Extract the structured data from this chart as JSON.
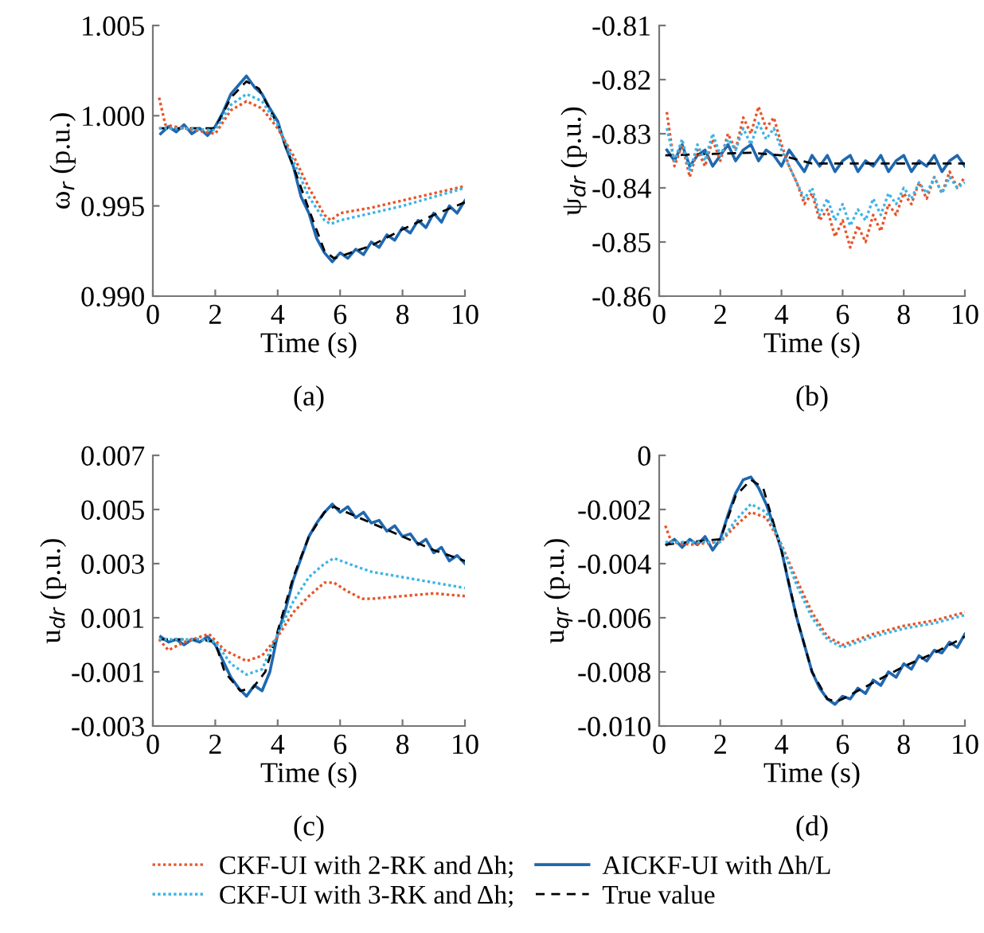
{
  "chart_data": [
    {
      "type": "line",
      "xlabel": "Time (s)",
      "ylabel": "ω$_{r}$ (p.u.)",
      "annotations": [
        "(a)"
      ],
      "legend": "bottom",
      "xlim": [
        0,
        10
      ],
      "xticks": [
        0,
        2,
        4,
        6,
        8,
        10
      ],
      "ylim": [
        0.99,
        1.005
      ],
      "yticks": [
        {
          "value": 0.99,
          "label": "0.990"
        },
        {
          "value": 0.995,
          "label": "0.995"
        },
        {
          "value": 1.0,
          "label": "1.000"
        },
        {
          "value": 1.005,
          "label": "1.005"
        }
      ],
      "x": [
        0.25,
        0.5,
        0.75,
        1.0,
        1.25,
        1.5,
        1.75,
        2.0,
        2.25,
        2.5,
        2.75,
        3.0,
        3.25,
        3.5,
        3.75,
        4.0,
        4.25,
        4.5,
        4.75,
        5.0,
        5.25,
        5.5,
        5.75,
        6.0,
        6.25,
        6.5,
        6.75,
        7.0,
        7.25,
        7.5,
        7.75,
        8.0,
        8.25,
        8.5,
        8.75,
        9.0,
        9.25,
        9.5,
        9.75,
        10.0
      ],
      "series": [
        {
          "name": "CKF-UI with 2-RK and Δh;",
          "color": "#e8542a",
          "line_style": "dotted",
          "x": [
            0.2,
            0.4,
            1,
            2,
            2.5,
            3,
            3.5,
            4,
            4.5,
            5,
            5.5,
            5.7,
            6,
            7,
            8,
            9,
            10
          ],
          "values": [
            1.001,
            0.9995,
            0.9993,
            0.999,
            1.0003,
            1.0008,
            1.0004,
            0.9993,
            0.9978,
            0.996,
            0.9945,
            0.9942,
            0.9946,
            0.9949,
            0.9953,
            0.9957,
            0.9961
          ]
        },
        {
          "name": "CKF-UI with 3-RK and Δh;",
          "color": "#3cb4e6",
          "line_style": "dotted",
          "x": [
            0.2,
            1,
            2,
            2.5,
            3,
            3.5,
            4,
            4.5,
            5,
            5.5,
            5.7,
            6,
            7,
            8,
            9,
            10
          ],
          "values": [
            0.9993,
            0.9993,
            0.9992,
            1.0006,
            1.0012,
            1.0008,
            0.9995,
            0.9975,
            0.9955,
            0.9942,
            0.994,
            0.9942,
            0.9946,
            0.995,
            0.9955,
            0.996
          ]
        },
        {
          "name": "AICKF-UI with Δh/L",
          "color": "#1f68b0",
          "line_style": "solid",
          "values": [
            0.999,
            0.9994,
            0.9991,
            0.9995,
            0.999,
            0.9993,
            0.9989,
            0.9994,
            1.0002,
            1.0012,
            1.0017,
            1.0022,
            1.0016,
            1.0012,
            1.0004,
            0.9997,
            0.9983,
            0.9972,
            0.9955,
            0.9946,
            0.9932,
            0.9924,
            0.9919,
            0.9924,
            0.9921,
            0.9926,
            0.9923,
            0.993,
            0.9927,
            0.9934,
            0.9931,
            0.9938,
            0.9935,
            0.9942,
            0.9938,
            0.9946,
            0.9941,
            0.995,
            0.9946,
            0.9953
          ]
        },
        {
          "name": "True value",
          "color": "#000000",
          "line_style": "dashed",
          "x": [
            0.2,
            1,
            2,
            2.5,
            3,
            3.4,
            4,
            4.5,
            5,
            5.5,
            5.8,
            6,
            7,
            8,
            9,
            10
          ],
          "values": [
            0.9993,
            0.9993,
            0.9993,
            1.001,
            1.0019,
            1.0015,
            0.9995,
            0.9972,
            0.9948,
            0.9925,
            0.9921,
            0.9922,
            0.9928,
            0.9937,
            0.9945,
            0.9952
          ]
        }
      ]
    },
    {
      "type": "line",
      "xlabel": "Time (s)",
      "ylabel": "ψ$_{dr}$ (p.u.)",
      "annotations": [
        "(b)"
      ],
      "xlim": [
        0,
        10
      ],
      "xticks": [
        0,
        2,
        4,
        6,
        8,
        10
      ],
      "ylim": [
        -0.86,
        -0.81
      ],
      "yticks": [
        -0.86,
        -0.85,
        -0.84,
        -0.83,
        -0.82,
        -0.81
      ],
      "x": [
        0.25,
        0.5,
        0.75,
        1.0,
        1.25,
        1.5,
        1.75,
        2.0,
        2.25,
        2.5,
        2.75,
        3.0,
        3.25,
        3.5,
        3.75,
        4.0,
        4.25,
        4.5,
        4.75,
        5.0,
        5.25,
        5.5,
        5.75,
        6.0,
        6.25,
        6.5,
        6.75,
        7.0,
        7.25,
        7.5,
        7.75,
        8.0,
        8.25,
        8.5,
        8.75,
        9.0,
        9.25,
        9.5,
        9.75,
        10.0
      ],
      "series": [
        {
          "color": "#e8542a",
          "line_style": "dotted",
          "values": [
            -0.826,
            -0.836,
            -0.832,
            -0.838,
            -0.833,
            -0.836,
            -0.831,
            -0.835,
            -0.83,
            -0.833,
            -0.827,
            -0.83,
            -0.825,
            -0.829,
            -0.827,
            -0.832,
            -0.836,
            -0.839,
            -0.843,
            -0.841,
            -0.846,
            -0.844,
            -0.849,
            -0.846,
            -0.851,
            -0.847,
            -0.85,
            -0.845,
            -0.848,
            -0.843,
            -0.845,
            -0.841,
            -0.843,
            -0.839,
            -0.842,
            -0.838,
            -0.841,
            -0.837,
            -0.84,
            -0.838
          ]
        },
        {
          "color": "#3cb4e6",
          "line_style": "dotted",
          "values": [
            -0.829,
            -0.835,
            -0.831,
            -0.837,
            -0.832,
            -0.835,
            -0.83,
            -0.834,
            -0.831,
            -0.833,
            -0.829,
            -0.832,
            -0.828,
            -0.831,
            -0.829,
            -0.833,
            -0.836,
            -0.839,
            -0.842,
            -0.84,
            -0.845,
            -0.842,
            -0.846,
            -0.843,
            -0.847,
            -0.844,
            -0.846,
            -0.842,
            -0.845,
            -0.841,
            -0.843,
            -0.84,
            -0.842,
            -0.839,
            -0.841,
            -0.838,
            -0.841,
            -0.838,
            -0.84,
            -0.839
          ]
        },
        {
          "color": "#1f68b0",
          "line_style": "solid",
          "values": [
            -0.833,
            -0.835,
            -0.832,
            -0.836,
            -0.834,
            -0.833,
            -0.836,
            -0.834,
            -0.832,
            -0.835,
            -0.833,
            -0.832,
            -0.835,
            -0.833,
            -0.834,
            -0.836,
            -0.833,
            -0.835,
            -0.837,
            -0.834,
            -0.836,
            -0.834,
            -0.837,
            -0.835,
            -0.834,
            -0.837,
            -0.835,
            -0.836,
            -0.834,
            -0.837,
            -0.835,
            -0.834,
            -0.837,
            -0.835,
            -0.836,
            -0.834,
            -0.837,
            -0.835,
            -0.834,
            -0.836
          ]
        },
        {
          "color": "#000000",
          "line_style": "dashed",
          "x": [
            0.2,
            3,
            4,
            5,
            10
          ],
          "values": [
            -0.834,
            -0.8335,
            -0.834,
            -0.8355,
            -0.8355
          ]
        }
      ]
    },
    {
      "type": "line",
      "xlabel": "Time (s)",
      "ylabel": "u$_{dr}$ (p.u.)",
      "annotations": [
        "(c)"
      ],
      "xlim": [
        0,
        10
      ],
      "xticks": [
        0,
        2,
        4,
        6,
        8,
        10
      ],
      "ylim": [
        -0.003,
        0.007
      ],
      "yticks": [
        -0.003,
        -0.001,
        0.001,
        0.003,
        0.005,
        0.007
      ],
      "x": [
        0.25,
        0.5,
        0.75,
        1.0,
        1.25,
        1.5,
        1.75,
        2.0,
        2.25,
        2.5,
        2.75,
        3.0,
        3.25,
        3.5,
        3.75,
        4.0,
        4.25,
        4.5,
        4.75,
        5.0,
        5.25,
        5.5,
        5.75,
        6.0,
        6.25,
        6.5,
        6.75,
        7.0,
        7.25,
        7.5,
        7.75,
        8.0,
        8.25,
        8.5,
        8.75,
        9.0,
        9.25,
        9.5,
        9.75,
        10.0
      ],
      "series": [
        {
          "color": "#e8542a",
          "line_style": "dotted",
          "x": [
            0.2,
            0.5,
            1,
            1.8,
            2.3,
            3,
            3.5,
            4,
            4.5,
            5,
            5.5,
            5.8,
            6.2,
            6.7,
            7,
            8,
            9,
            10
          ],
          "values": [
            0.0002,
            -0.0002,
            0.0001,
            0.0004,
            -0.0002,
            -0.0006,
            -0.0004,
            0.0003,
            0.0012,
            0.0018,
            0.0023,
            0.0023,
            0.002,
            0.0017,
            0.0017,
            0.0018,
            0.0019,
            0.0018
          ]
        },
        {
          "color": "#3cb4e6",
          "line_style": "dotted",
          "x": [
            0.2,
            1.5,
            2,
            2.5,
            3,
            3.5,
            4,
            4.5,
            5,
            5.5,
            5.8,
            6.5,
            7,
            8,
            9,
            10
          ],
          "values": [
            0.0002,
            0.0002,
            0.0001,
            -0.0007,
            -0.0011,
            -0.0009,
            0.0004,
            0.0016,
            0.0025,
            0.003,
            0.0032,
            0.0029,
            0.0027,
            0.0025,
            0.0023,
            0.0021
          ]
        },
        {
          "color": "#1f68b0",
          "line_style": "solid",
          "values": [
            0.0003,
            0.0001,
            0.0002,
            0.0,
            0.0002,
            0.0001,
            0.0003,
            0.0,
            -0.0006,
            -0.0012,
            -0.0016,
            -0.0019,
            -0.0015,
            -0.0017,
            -0.001,
            0.0004,
            0.0013,
            0.0024,
            0.0032,
            0.004,
            0.0045,
            0.0049,
            0.0052,
            0.0049,
            0.0051,
            0.0047,
            0.0049,
            0.0045,
            0.0046,
            0.0042,
            0.0044,
            0.004,
            0.0041,
            0.0037,
            0.0039,
            0.0034,
            0.0036,
            0.0031,
            0.0033,
            0.003
          ]
        },
        {
          "color": "#000000",
          "line_style": "dashed",
          "x": [
            0.2,
            1.5,
            2,
            2.3,
            2.8,
            3.2,
            3.6,
            4,
            4.5,
            5,
            5.5,
            5.8,
            6,
            7,
            8,
            9,
            10
          ],
          "values": [
            0.0002,
            0.0002,
            0.0001,
            -0.001,
            -0.0017,
            -0.0016,
            -0.001,
            0.0005,
            0.0025,
            0.004,
            0.0049,
            0.0051,
            0.005,
            0.0045,
            0.004,
            0.0035,
            0.0031
          ]
        }
      ]
    },
    {
      "type": "line",
      "xlabel": "Time (s)",
      "ylabel": "u$_{qr}$ (p.u.)",
      "annotations": [
        "(d)"
      ],
      "xlim": [
        0,
        10
      ],
      "xticks": [
        0,
        2,
        4,
        6,
        8,
        10
      ],
      "ylim": [
        -0.01,
        0
      ],
      "yticks": [
        {
          "value": -0.01,
          "label": "-0.010"
        },
        -0.008,
        -0.006,
        -0.004,
        -0.002,
        0
      ],
      "x": [
        0.25,
        0.5,
        0.75,
        1.0,
        1.25,
        1.5,
        1.75,
        2.0,
        2.25,
        2.5,
        2.75,
        3.0,
        3.25,
        3.5,
        3.75,
        4.0,
        4.25,
        4.5,
        4.75,
        5.0,
        5.25,
        5.5,
        5.75,
        6.0,
        6.25,
        6.5,
        6.75,
        7.0,
        7.25,
        7.5,
        7.75,
        8.0,
        8.25,
        8.5,
        8.75,
        9.0,
        9.25,
        9.5,
        9.75,
        10.0
      ],
      "series": [
        {
          "color": "#e8542a",
          "line_style": "dotted",
          "x": [
            0.2,
            0.4,
            1,
            2,
            2.5,
            3,
            3.5,
            4,
            4.5,
            5,
            5.5,
            6,
            6.5,
            7,
            8,
            9,
            10
          ],
          "values": [
            -0.0026,
            -0.0032,
            -0.0033,
            -0.0032,
            -0.0026,
            -0.0021,
            -0.0023,
            -0.0033,
            -0.0046,
            -0.0058,
            -0.0067,
            -0.007,
            -0.0068,
            -0.0066,
            -0.0063,
            -0.0061,
            -0.0058
          ]
        },
        {
          "color": "#3cb4e6",
          "line_style": "dotted",
          "x": [
            0.2,
            2,
            2.5,
            3,
            3.5,
            4,
            4.5,
            5,
            5.5,
            6,
            6.5,
            7,
            8,
            9,
            10
          ],
          "values": [
            -0.0032,
            -0.0032,
            -0.0024,
            -0.0018,
            -0.0021,
            -0.0033,
            -0.0048,
            -0.006,
            -0.0068,
            -0.0071,
            -0.0069,
            -0.0067,
            -0.0064,
            -0.0062,
            -0.0059
          ]
        },
        {
          "color": "#1f68b0",
          "line_style": "solid",
          "values": [
            -0.0033,
            -0.0031,
            -0.0034,
            -0.0031,
            -0.0033,
            -0.003,
            -0.0035,
            -0.0031,
            -0.0022,
            -0.0014,
            -0.0009,
            -0.0008,
            -0.0012,
            -0.0018,
            -0.0026,
            -0.0035,
            -0.0048,
            -0.006,
            -0.007,
            -0.008,
            -0.0086,
            -0.009,
            -0.0092,
            -0.0089,
            -0.009,
            -0.0086,
            -0.0088,
            -0.0083,
            -0.0085,
            -0.008,
            -0.0082,
            -0.0077,
            -0.0079,
            -0.0074,
            -0.0076,
            -0.0072,
            -0.0073,
            -0.0069,
            -0.0071,
            -0.0066
          ]
        },
        {
          "color": "#000000",
          "line_style": "dashed",
          "x": [
            0.2,
            1,
            2,
            2.5,
            3,
            3.4,
            4,
            4.5,
            5,
            5.5,
            5.8,
            6,
            7,
            8,
            9,
            10
          ],
          "values": [
            -0.0033,
            -0.0032,
            -0.0031,
            -0.0015,
            -0.0009,
            -0.0012,
            -0.0035,
            -0.006,
            -0.008,
            -0.009,
            -0.0091,
            -0.009,
            -0.0084,
            -0.0078,
            -0.0073,
            -0.0067
          ]
        }
      ]
    }
  ]
}
